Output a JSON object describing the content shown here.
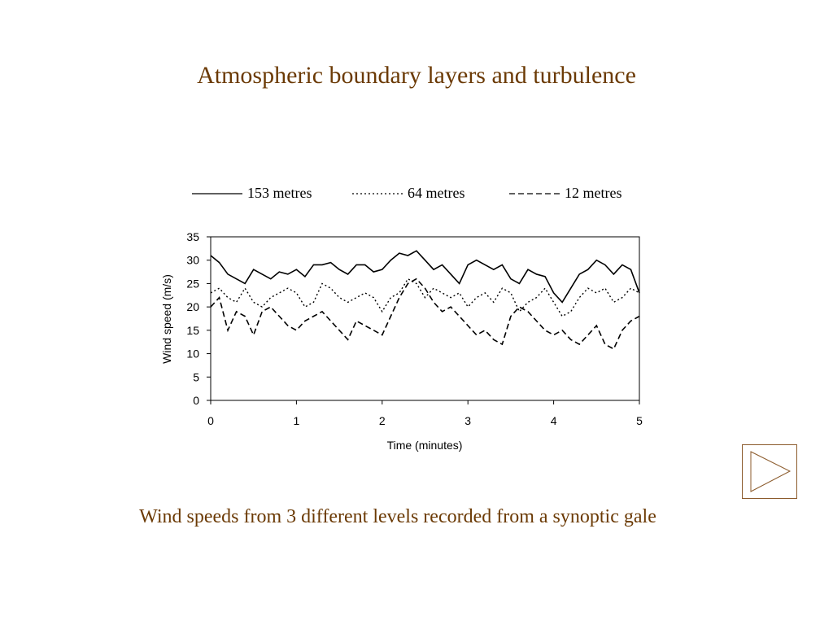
{
  "slide": {
    "title": "Atmospheric boundary layers and turbulence",
    "caption": "Wind speeds from 3 different levels recorded from a synoptic gale",
    "next_button_icon": "play-triangle-icon",
    "accent_color": "#6b3a05"
  },
  "chart_data": {
    "type": "line",
    "title": "",
    "xlabel": "Time (minutes)",
    "ylabel": "Wind speed (m/s)",
    "xlim": [
      0,
      5
    ],
    "ylim": [
      0,
      35
    ],
    "xticks": [
      0,
      1,
      2,
      3,
      4,
      5
    ],
    "yticks": [
      0,
      5,
      10,
      15,
      20,
      25,
      30,
      35
    ],
    "grid": false,
    "legend_position": "top",
    "x": [
      0,
      0.1,
      0.2,
      0.3,
      0.4,
      0.5,
      0.6,
      0.7,
      0.8,
      0.9,
      1.0,
      1.1,
      1.2,
      1.3,
      1.4,
      1.5,
      1.6,
      1.7,
      1.8,
      1.9,
      2.0,
      2.1,
      2.2,
      2.3,
      2.4,
      2.5,
      2.6,
      2.7,
      2.8,
      2.9,
      3.0,
      3.1,
      3.2,
      3.3,
      3.4,
      3.5,
      3.6,
      3.7,
      3.8,
      3.9,
      4.0,
      4.1,
      4.2,
      4.3,
      4.4,
      4.5,
      4.6,
      4.7,
      4.8,
      4.9,
      5.0
    ],
    "series": [
      {
        "name": "153 metres",
        "dash": "solid",
        "values": [
          31,
          29.5,
          27,
          26,
          25,
          28,
          27,
          26,
          27.5,
          27,
          28,
          26.5,
          29,
          29,
          29.5,
          28,
          27,
          29,
          29,
          27.5,
          28,
          30,
          31.5,
          31,
          32,
          30,
          28,
          29,
          27,
          25,
          29,
          30,
          29,
          28,
          29,
          26,
          25,
          28,
          27,
          26.5,
          23,
          21,
          24,
          27,
          28,
          30,
          29,
          27,
          29,
          28,
          23
        ]
      },
      {
        "name": "64 metres",
        "dash": "dotted",
        "values": [
          23,
          24,
          22,
          21,
          24,
          21,
          20,
          22,
          23,
          24,
          23,
          20,
          21,
          25,
          24,
          22,
          21,
          22,
          23,
          22,
          19,
          22,
          23,
          26,
          25,
          22,
          24,
          23,
          22,
          23,
          20,
          22,
          23,
          21,
          24,
          23,
          19,
          21,
          22,
          24,
          21,
          18,
          19,
          22,
          24,
          23,
          24,
          21,
          22,
          24,
          23
        ]
      },
      {
        "name": "12 metres",
        "dash": "dashed",
        "values": [
          20,
          22,
          15,
          19,
          18,
          14,
          19,
          20,
          18,
          16,
          15,
          17,
          18,
          19,
          17,
          15,
          13,
          17,
          16,
          15,
          14,
          18,
          22,
          25,
          26,
          24,
          21,
          19,
          20,
          18,
          16,
          14,
          15,
          13,
          12,
          18,
          20,
          19,
          17,
          15,
          14,
          15,
          13,
          12,
          14,
          16,
          12,
          11,
          15,
          17,
          18
        ]
      }
    ]
  }
}
